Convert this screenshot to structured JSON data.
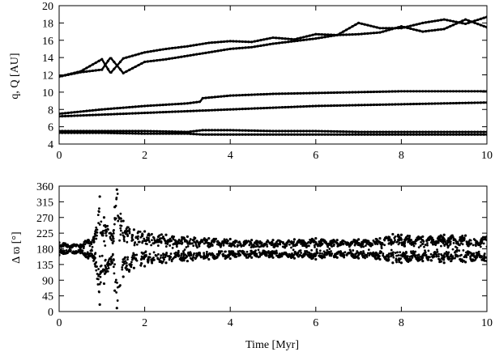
{
  "chart_data": [
    {
      "type": "scatter",
      "title": "",
      "xlabel": "",
      "ylabel": "q, Q [AU]",
      "xlim": [
        0,
        10
      ],
      "ylim": [
        4,
        20
      ],
      "xticks": [
        0,
        2,
        4,
        6,
        8,
        10
      ],
      "yticks": [
        4,
        6,
        8,
        10,
        12,
        14,
        16,
        18,
        20
      ],
      "grid": false,
      "legend": "none",
      "series": [
        {
          "x": [
            0,
            0.5,
            1.0,
            1.2,
            1.5,
            2.0,
            2.5,
            3.0,
            3.5,
            4.0,
            4.5,
            5.0,
            5.5,
            6.0,
            6.5,
            7.0,
            7.5,
            8.0,
            8.5,
            9.0,
            9.5,
            10.0
          ],
          "values": [
            11.8,
            12.4,
            13.8,
            12.2,
            13.9,
            14.6,
            15.0,
            15.3,
            15.7,
            15.9,
            15.8,
            16.3,
            16.1,
            16.7,
            16.6,
            18.0,
            17.4,
            17.4,
            18.0,
            18.4,
            17.9,
            18.7
          ]
        },
        {
          "x": [
            0,
            0.5,
            1.0,
            1.2,
            1.5,
            2.0,
            2.5,
            3.0,
            3.5,
            4.0,
            4.5,
            5.0,
            5.5,
            6.0,
            6.5,
            7.0,
            7.5,
            8.0,
            8.5,
            9.0,
            9.5,
            10.0
          ],
          "values": [
            11.8,
            12.3,
            12.6,
            14.0,
            12.2,
            13.5,
            13.8,
            14.2,
            14.6,
            15.0,
            15.2,
            15.6,
            15.9,
            16.2,
            16.6,
            16.7,
            16.9,
            17.6,
            17.0,
            17.3,
            18.4,
            17.5
          ]
        },
        {
          "x": [
            0,
            1.0,
            2.0,
            3.0,
            3.3,
            3.35,
            4.0,
            5.0,
            6.0,
            7.0,
            8.0,
            9.0,
            10.0
          ],
          "values": [
            7.5,
            8.0,
            8.4,
            8.7,
            8.9,
            9.3,
            9.6,
            9.8,
            9.9,
            10.0,
            10.1,
            10.1,
            10.1
          ]
        },
        {
          "x": [
            0,
            1.0,
            2.0,
            3.0,
            4.0,
            5.0,
            6.0,
            7.0,
            8.0,
            9.0,
            10.0
          ],
          "values": [
            7.2,
            7.4,
            7.6,
            7.8,
            8.0,
            8.2,
            8.4,
            8.5,
            8.6,
            8.7,
            8.8
          ]
        },
        {
          "x": [
            0,
            1.0,
            2.0,
            3.0,
            3.35,
            4.0,
            5.0,
            6.0,
            7.0,
            8.0,
            9.0,
            10.0
          ],
          "values": [
            5.5,
            5.5,
            5.5,
            5.4,
            5.6,
            5.6,
            5.5,
            5.5,
            5.4,
            5.4,
            5.4,
            5.4
          ]
        },
        {
          "x": [
            0,
            1.0,
            2.0,
            3.0,
            3.35,
            4.0,
            5.0,
            6.0,
            7.0,
            8.0,
            9.0,
            10.0
          ],
          "values": [
            5.3,
            5.3,
            5.2,
            5.2,
            5.1,
            5.1,
            5.1,
            5.1,
            5.1,
            5.1,
            5.1,
            5.1
          ]
        }
      ]
    },
    {
      "type": "scatter",
      "title": "",
      "xlabel": "Time [Myr]",
      "ylabel": "Δ ϖ [°]",
      "xlim": [
        0,
        10
      ],
      "ylim": [
        0,
        360
      ],
      "xticks": [
        0,
        2,
        4,
        6,
        8,
        10
      ],
      "yticks": [
        0,
        45,
        90,
        135,
        180,
        225,
        270,
        315,
        360
      ],
      "grid": false,
      "legend": "none",
      "series": [
        {
          "x": [
            0,
            0.5,
            0.85,
            0.95,
            1.05,
            1.2,
            1.3,
            1.35,
            1.5,
            1.75,
            2.0,
            2.5,
            3.0,
            3.5,
            4.0,
            4.5,
            5.0,
            5.5,
            6.0,
            6.5,
            7.0,
            7.5,
            7.8,
            8.0,
            8.5,
            9.0,
            9.5,
            10.0
          ],
          "values": [
            198,
            192,
            230,
            330,
            270,
            225,
            300,
            350,
            260,
            235,
            230,
            220,
            215,
            210,
            208,
            205,
            205,
            207,
            210,
            205,
            207,
            210,
            222,
            220,
            215,
            220,
            218,
            215
          ]
        },
        {
          "x": [
            0,
            0.5,
            0.85,
            0.95,
            1.05,
            1.2,
            1.3,
            1.35,
            1.5,
            1.75,
            2.0,
            2.5,
            3.0,
            3.5,
            4.0,
            4.5,
            5.0,
            5.5,
            6.0,
            6.5,
            7.0,
            7.5,
            7.8,
            8.0,
            8.5,
            9.0,
            9.5,
            10.0
          ],
          "values": [
            162,
            168,
            130,
            20,
            80,
            135,
            60,
            10,
            100,
            125,
            130,
            140,
            145,
            150,
            152,
            155,
            155,
            153,
            150,
            155,
            153,
            150,
            140,
            140,
            145,
            140,
            142,
            145
          ]
        }
      ]
    }
  ]
}
